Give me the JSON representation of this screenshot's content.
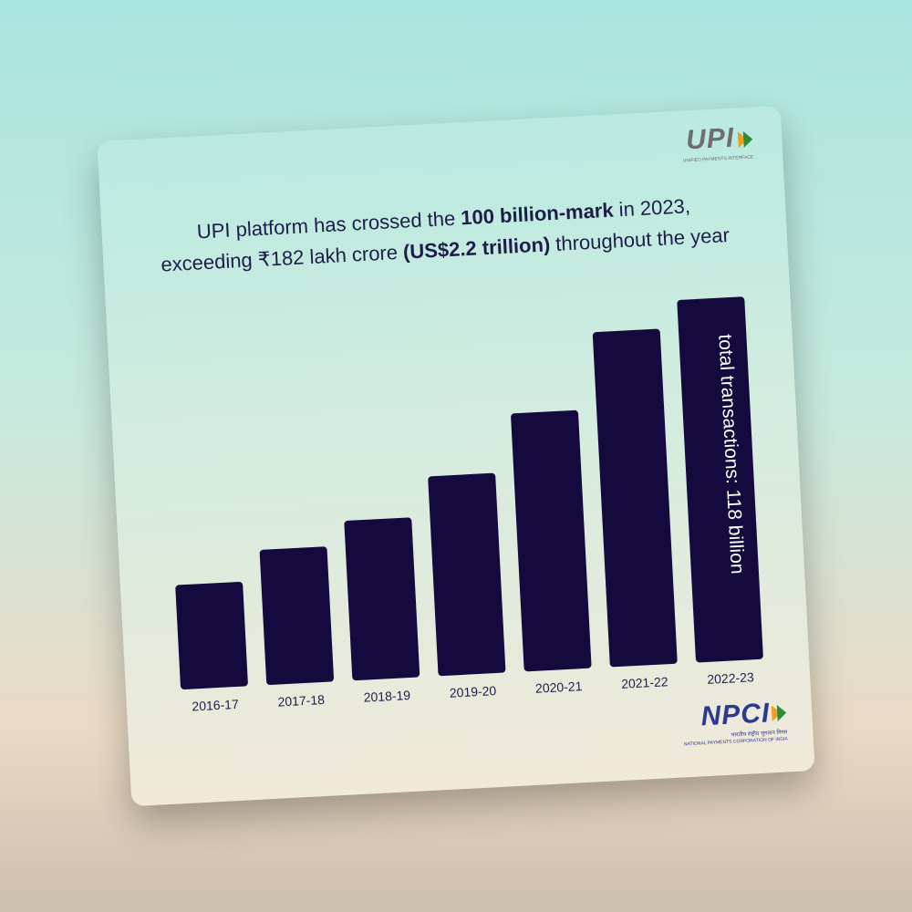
{
  "upi_logo": {
    "word": "UPI",
    "tagline": "UNIFIED PAYMENTS INTERFACE"
  },
  "headline": {
    "part1": "UPI platform has crossed the ",
    "bold1": "100 billion-mark",
    "part2": " in 2023, exceeding ₹182 lakh crore ",
    "bold2": "(US$2.2 trillion)",
    "part3": " throughout the year"
  },
  "npci_logo": {
    "word": "NPCI",
    "hindi": "भारतीय राष्ट्रीय भुगतान निगम",
    "tagline": "NATIONAL PAYMENTS CORPORATION OF INDIA"
  },
  "colors": {
    "bar": "#140a3d",
    "text": "#1e1d4a",
    "saffron": "#f39c22",
    "green": "#2e8b3a"
  },
  "chart_data": {
    "type": "bar",
    "categories": [
      "2016-17",
      "2017-18",
      "2018-19",
      "2019-20",
      "2020-21",
      "2021-22",
      "2022-23"
    ],
    "values": [
      34,
      44,
      52,
      65,
      84,
      109,
      118
    ],
    "ylim": [
      0,
      118
    ],
    "bar_annotation": {
      "index": 6,
      "text": "total transactions: 118 billion"
    },
    "title": "",
    "xlabel": "",
    "ylabel": "",
    "grid": false,
    "legend": "none"
  }
}
